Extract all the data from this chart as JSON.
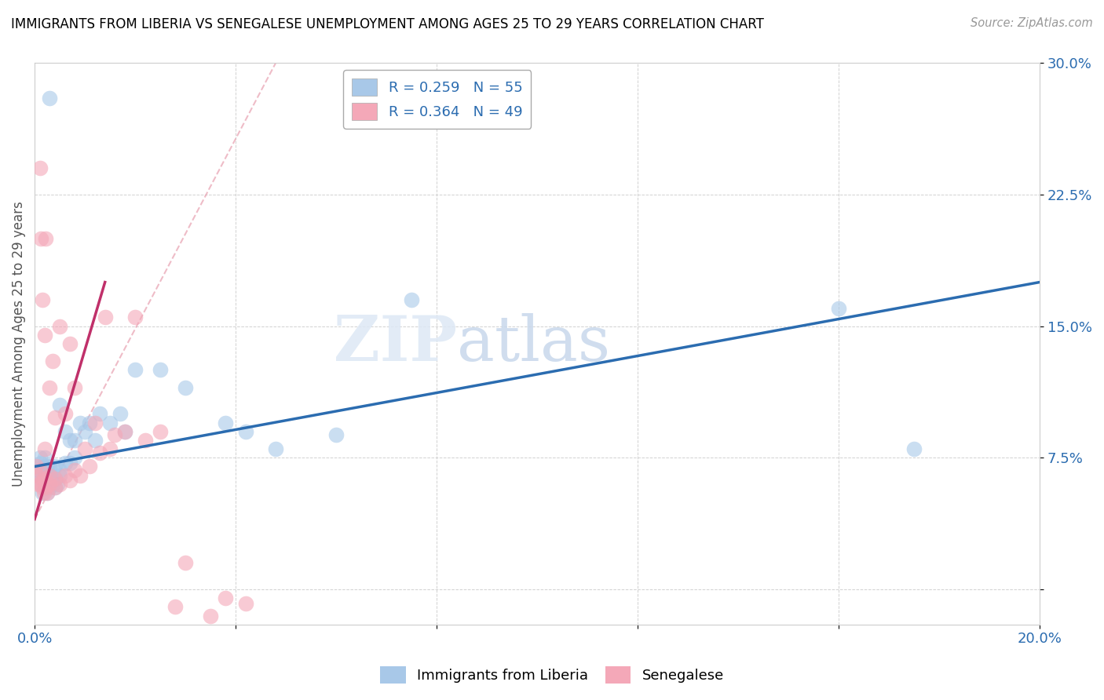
{
  "title": "IMMIGRANTS FROM LIBERIA VS SENEGALESE UNEMPLOYMENT AMONG AGES 25 TO 29 YEARS CORRELATION CHART",
  "source": "Source: ZipAtlas.com",
  "ylabel": "Unemployment Among Ages 25 to 29 years",
  "xlim": [
    0.0,
    0.2
  ],
  "ylim": [
    -0.02,
    0.3
  ],
  "xticks": [
    0.0,
    0.04,
    0.08,
    0.12,
    0.16,
    0.2
  ],
  "xtick_labels": [
    "0.0%",
    "",
    "",
    "",
    "",
    "20.0%"
  ],
  "yticks": [
    0.0,
    0.075,
    0.15,
    0.225,
    0.3
  ],
  "ytick_labels": [
    "",
    "7.5%",
    "15.0%",
    "22.5%",
    "30.0%"
  ],
  "blue_R": 0.259,
  "blue_N": 55,
  "pink_R": 0.364,
  "pink_N": 49,
  "blue_color": "#a8c8e8",
  "pink_color": "#f4a8b8",
  "blue_line_color": "#2b6cb0",
  "pink_line_color": "#c0306a",
  "pink_dash_color": "#e8a0b0",
  "legend1_label": "Immigrants from Liberia",
  "legend2_label": "Senegalese",
  "watermark_zip": "ZIP",
  "watermark_atlas": "atlas",
  "blue_x": [
    0.0005,
    0.0008,
    0.001,
    0.001,
    0.0012,
    0.0012,
    0.0015,
    0.0015,
    0.0015,
    0.0018,
    0.002,
    0.002,
    0.002,
    0.0022,
    0.0022,
    0.0025,
    0.0025,
    0.0025,
    0.003,
    0.003,
    0.003,
    0.003,
    0.0035,
    0.0035,
    0.004,
    0.004,
    0.004,
    0.0045,
    0.005,
    0.005,
    0.005,
    0.006,
    0.006,
    0.007,
    0.007,
    0.008,
    0.008,
    0.009,
    0.01,
    0.011,
    0.012,
    0.013,
    0.015,
    0.017,
    0.018,
    0.02,
    0.025,
    0.03,
    0.038,
    0.042,
    0.048,
    0.06,
    0.075,
    0.16,
    0.175
  ],
  "blue_y": [
    0.07,
    0.068,
    0.075,
    0.065,
    0.072,
    0.06,
    0.063,
    0.068,
    0.055,
    0.07,
    0.06,
    0.065,
    0.075,
    0.058,
    0.062,
    0.055,
    0.063,
    0.07,
    0.058,
    0.065,
    0.07,
    0.28,
    0.062,
    0.06,
    0.058,
    0.063,
    0.07,
    0.06,
    0.065,
    0.068,
    0.105,
    0.072,
    0.09,
    0.072,
    0.085,
    0.075,
    0.085,
    0.095,
    0.09,
    0.095,
    0.085,
    0.1,
    0.095,
    0.1,
    0.09,
    0.125,
    0.125,
    0.115,
    0.095,
    0.09,
    0.08,
    0.088,
    0.165,
    0.16,
    0.08
  ],
  "pink_x": [
    0.0003,
    0.0005,
    0.0008,
    0.001,
    0.001,
    0.0012,
    0.0012,
    0.0015,
    0.0015,
    0.0015,
    0.0018,
    0.002,
    0.002,
    0.002,
    0.0022,
    0.0022,
    0.0025,
    0.003,
    0.003,
    0.003,
    0.0035,
    0.004,
    0.004,
    0.004,
    0.005,
    0.005,
    0.006,
    0.006,
    0.007,
    0.007,
    0.008,
    0.008,
    0.009,
    0.01,
    0.011,
    0.012,
    0.013,
    0.014,
    0.015,
    0.016,
    0.018,
    0.02,
    0.022,
    0.025,
    0.028,
    0.03,
    0.035,
    0.038,
    0.042
  ],
  "pink_y": [
    0.07,
    0.065,
    0.06,
    0.24,
    0.068,
    0.06,
    0.2,
    0.058,
    0.062,
    0.165,
    0.055,
    0.063,
    0.08,
    0.145,
    0.058,
    0.2,
    0.055,
    0.06,
    0.065,
    0.115,
    0.13,
    0.058,
    0.063,
    0.098,
    0.06,
    0.15,
    0.065,
    0.1,
    0.062,
    0.14,
    0.068,
    0.115,
    0.065,
    0.08,
    0.07,
    0.095,
    0.078,
    0.155,
    0.08,
    0.088,
    0.09,
    0.155,
    0.085,
    0.09,
    -0.01,
    0.015,
    -0.015,
    -0.005,
    -0.008
  ]
}
